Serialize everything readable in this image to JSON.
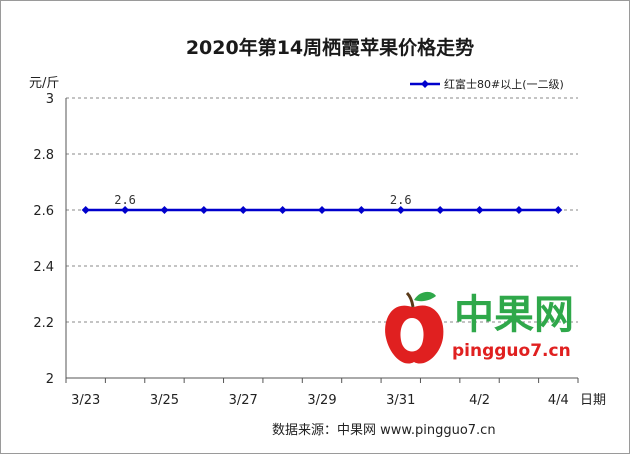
{
  "chart_data": {
    "type": "line",
    "title": "2020年第14周栖霞苹果价格走势",
    "ylabel": "元/斤",
    "xlabel": "日期",
    "ylim": [
      2,
      3
    ],
    "yticks": [
      "3",
      "2.8",
      "2.6",
      "2.4",
      "2.2",
      "2"
    ],
    "x": [
      "3/23",
      "3/24",
      "3/25",
      "3/26",
      "3/27",
      "3/28",
      "3/29",
      "3/30",
      "3/31",
      "4/1",
      "4/2",
      "4/3",
      "4/4"
    ],
    "xtick_labels": [
      "3/23",
      "3/25",
      "3/27",
      "3/29",
      "3/31",
      "4/2",
      "4/4"
    ],
    "series": [
      {
        "name": "红富士80#以上(一二级)",
        "values": [
          2.6,
          2.6,
          2.6,
          2.6,
          2.6,
          2.6,
          2.6,
          2.6,
          2.6,
          2.6,
          2.6,
          2.6,
          2.6
        ],
        "color": "#0000cc"
      }
    ],
    "data_labels": [
      {
        "x": "3/24",
        "text": "2.6"
      },
      {
        "x": "3/31",
        "text": "2.6"
      }
    ],
    "legend_position": "top-right",
    "grid": "horizontal-dashed"
  },
  "watermark": {
    "brand": "中果网",
    "url": "pingguo7.cn"
  },
  "source": "数据来源：中果网 www.pingguo7.cn"
}
